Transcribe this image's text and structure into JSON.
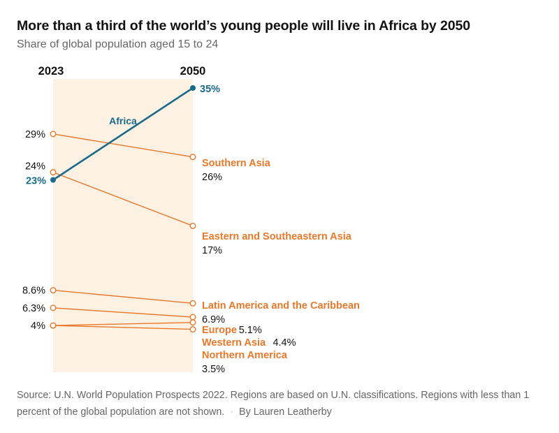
{
  "title": "More than a third of the world’s young people will live in Africa by 2050",
  "subtitle": "Share of global population aged 15 to 24",
  "footer": {
    "source": "Source: U.N. World Population Prospects 2022. Regions are based on U.N. classifications. Regions with less than 1 percent of the global population are not shown.",
    "separator": "·",
    "byline": "By Lauren Leatherby"
  },
  "colors": {
    "africa": "#1a6a8a",
    "others": "#e8782a",
    "band": "#fdf1e3",
    "text": "#121212"
  },
  "chart_data": {
    "type": "line",
    "subtype": "slope",
    "x": [
      "2023",
      "2050"
    ],
    "ylabel": "Share of global population aged 15 to 24 (%)",
    "series": [
      {
        "name": "Africa",
        "values": [
          23,
          35
        ],
        "start_label": "23%",
        "end_label": "35%",
        "highlight": true
      },
      {
        "name": "Southern Asia",
        "values": [
          29,
          26
        ],
        "start_label": "29%",
        "end_label": "26%"
      },
      {
        "name": "Eastern and Southeastern Asia",
        "values": [
          24,
          17
        ],
        "start_label": "24%",
        "end_label": "17%"
      },
      {
        "name": "Latin America and the Caribbean",
        "values": [
          8.6,
          6.9
        ],
        "start_label": "8.6%",
        "end_label": "6.9%"
      },
      {
        "name": "Europe",
        "values": [
          6.3,
          5.1
        ],
        "start_label": "6.3%",
        "end_label": "5.1%"
      },
      {
        "name": "Western Asia",
        "values": [
          4,
          4.4
        ],
        "start_label": "4%",
        "end_label": "4.4%"
      },
      {
        "name": "Northern America",
        "values": [
          4,
          3.5
        ],
        "start_label": "",
        "end_label": "3.5%"
      }
    ]
  }
}
